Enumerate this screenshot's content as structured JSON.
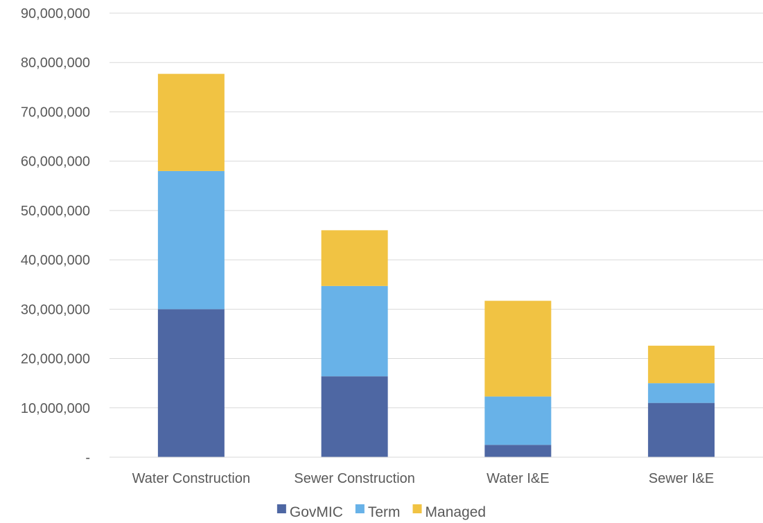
{
  "chart_data": {
    "type": "bar",
    "stacked": true,
    "categories": [
      "Water Construction",
      "Sewer Construction",
      "Water I&E",
      "Sewer I&E"
    ],
    "series": [
      {
        "name": "GovMIC",
        "color": "#4e67a3",
        "values": [
          30000000,
          16400000,
          2500000,
          11000000
        ]
      },
      {
        "name": "Term",
        "color": "#68b2e8",
        "values": [
          28000000,
          18300000,
          9800000,
          4000000
        ]
      },
      {
        "name": "Managed",
        "color": "#f1c343",
        "values": [
          19700000,
          11300000,
          19400000,
          7600000
        ]
      }
    ],
    "ylim": [
      0,
      90000000
    ],
    "yticks": [
      {
        "value": 0,
        "label": "-"
      },
      {
        "value": 10000000,
        "label": "10,000,000"
      },
      {
        "value": 20000000,
        "label": "20,000,000"
      },
      {
        "value": 30000000,
        "label": "30,000,000"
      },
      {
        "value": 40000000,
        "label": "40,000,000"
      },
      {
        "value": 50000000,
        "label": "50,000,000"
      },
      {
        "value": 60000000,
        "label": "60,000,000"
      },
      {
        "value": 70000000,
        "label": "70,000,000"
      },
      {
        "value": 80000000,
        "label": "80,000,000"
      },
      {
        "value": 90000000,
        "label": "90,000,000"
      }
    ],
    "grid": true,
    "legend_position": "bottom",
    "title": "",
    "xlabel": "",
    "ylabel": ""
  }
}
